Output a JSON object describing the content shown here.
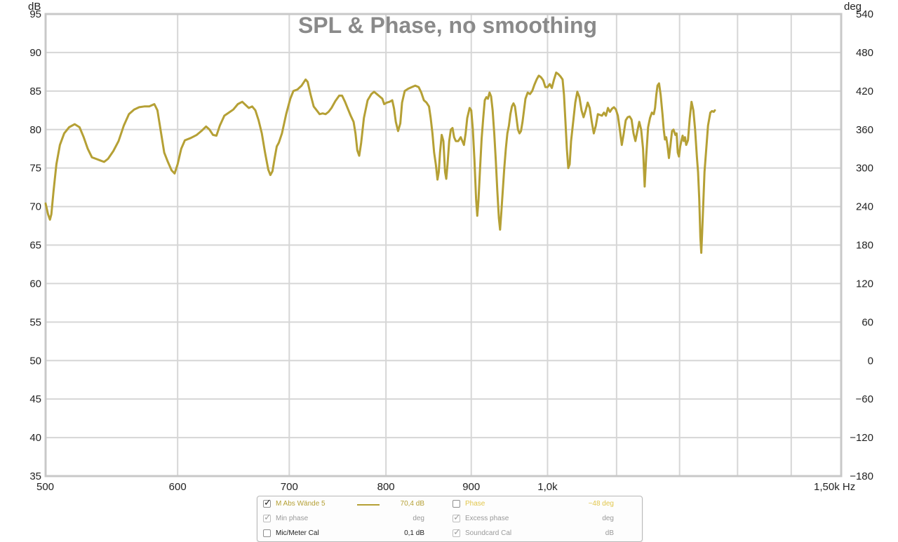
{
  "chart_data": {
    "type": "line",
    "title": "SPL & Phase, no smoothing",
    "x_scale": "log",
    "xlim": [
      500,
      1500
    ],
    "x_ticks": [
      {
        "value": 500,
        "label": "500"
      },
      {
        "value": 600,
        "label": "600"
      },
      {
        "value": 700,
        "label": "700"
      },
      {
        "value": 800,
        "label": "800"
      },
      {
        "value": 900,
        "label": "900"
      },
      {
        "value": 1000,
        "label": "1,0k"
      },
      {
        "value": 1500,
        "label": "1,50k Hz"
      }
    ],
    "x_minor_gridlines": [
      1100,
      1200,
      1300,
      1400
    ],
    "ylabel": "dB",
    "ylim": [
      35,
      95
    ],
    "y_ticks": [
      35,
      40,
      45,
      50,
      55,
      60,
      65,
      70,
      75,
      80,
      85,
      90,
      95
    ],
    "y2label": "deg",
    "y2lim": [
      -180,
      540
    ],
    "y2_ticks": [
      "540",
      "480",
      "420",
      "360",
      "300",
      "240",
      "180",
      "120",
      "60",
      "0",
      "−60",
      "−120",
      "−180"
    ],
    "grid": true,
    "series": [
      {
        "name": "M Abs Wände 5",
        "color": "#b5a035",
        "points": [
          [
            500,
            70.4
          ],
          [
            501.7,
            69.0
          ],
          [
            503,
            68.3
          ],
          [
            504,
            69.0
          ],
          [
            505.5,
            72.0
          ],
          [
            507.5,
            75.5
          ],
          [
            510,
            78.0
          ],
          [
            513,
            79.5
          ],
          [
            516.5,
            80.3
          ],
          [
            520.5,
            80.7
          ],
          [
            524,
            80.3
          ],
          [
            527,
            79.0
          ],
          [
            530,
            77.5
          ],
          [
            533,
            76.4
          ],
          [
            536,
            76.2
          ],
          [
            539,
            76.0
          ],
          [
            542,
            75.8
          ],
          [
            545,
            76.2
          ],
          [
            549,
            77.2
          ],
          [
            553,
            78.5
          ],
          [
            557,
            80.5
          ],
          [
            561,
            82.0
          ],
          [
            565,
            82.6
          ],
          [
            569,
            82.9
          ],
          [
            573,
            83.0
          ],
          [
            577,
            83.0
          ],
          [
            581,
            83.3
          ],
          [
            583.5,
            82.5
          ],
          [
            586,
            80.0
          ],
          [
            589,
            77.0
          ],
          [
            592,
            75.8
          ],
          [
            595,
            74.7
          ],
          [
            597.5,
            74.3
          ],
          [
            600,
            75.5
          ],
          [
            603,
            77.5
          ],
          [
            606,
            78.6
          ],
          [
            611,
            78.9
          ],
          [
            616,
            79.3
          ],
          [
            620,
            79.8
          ],
          [
            624,
            80.4
          ],
          [
            627,
            80.0
          ],
          [
            630,
            79.3
          ],
          [
            633,
            79.2
          ],
          [
            636,
            80.5
          ],
          [
            640,
            81.8
          ],
          [
            644,
            82.2
          ],
          [
            648,
            82.6
          ],
          [
            652,
            83.3
          ],
          [
            656,
            83.6
          ],
          [
            659,
            83.2
          ],
          [
            662,
            82.8
          ],
          [
            665,
            83.0
          ],
          [
            668,
            82.5
          ],
          [
            671,
            81.2
          ],
          [
            674,
            79.5
          ],
          [
            677,
            77.0
          ],
          [
            680,
            74.8
          ],
          [
            682,
            74.1
          ],
          [
            684,
            74.6
          ],
          [
            686,
            76.3
          ],
          [
            688,
            77.8
          ],
          [
            690,
            78.3
          ],
          [
            693,
            79.5
          ],
          [
            697,
            82.0
          ],
          [
            701,
            84.0
          ],
          [
            704,
            85.0
          ],
          [
            708,
            85.2
          ],
          [
            712,
            85.7
          ],
          [
            716,
            86.5
          ],
          [
            718,
            86.2
          ],
          [
            721,
            84.5
          ],
          [
            724,
            83.0
          ],
          [
            727,
            82.5
          ],
          [
            730,
            82.0
          ],
          [
            733,
            82.1
          ],
          [
            736,
            82.0
          ],
          [
            739,
            82.3
          ],
          [
            742,
            82.8
          ],
          [
            746,
            83.7
          ],
          [
            750,
            84.4
          ],
          [
            753,
            84.4
          ],
          [
            756,
            83.6
          ],
          [
            759,
            82.7
          ],
          [
            762,
            81.8
          ],
          [
            765,
            81.0
          ],
          [
            767,
            79.5
          ],
          [
            769,
            77.3
          ],
          [
            771,
            76.6
          ],
          [
            773,
            78.2
          ],
          [
            776,
            81.5
          ],
          [
            780,
            83.8
          ],
          [
            784,
            84.6
          ],
          [
            787,
            84.9
          ],
          [
            790,
            84.6
          ],
          [
            793,
            84.3
          ],
          [
            796,
            84.0
          ],
          [
            798,
            83.3
          ],
          [
            801,
            83.5
          ],
          [
            804,
            83.6
          ],
          [
            807,
            83.8
          ],
          [
            809,
            82.7
          ],
          [
            811,
            81.0
          ],
          [
            813.5,
            79.8
          ],
          [
            816,
            80.8
          ],
          [
            818,
            83.5
          ],
          [
            821,
            85.0
          ],
          [
            825,
            85.3
          ],
          [
            829,
            85.5
          ],
          [
            833,
            85.7
          ],
          [
            837,
            85.5
          ],
          [
            840,
            84.8
          ],
          [
            843,
            83.8
          ],
          [
            846,
            83.5
          ],
          [
            849,
            83.0
          ],
          [
            851,
            81.5
          ],
          [
            853,
            79.5
          ],
          [
            855,
            77.0
          ],
          [
            857,
            75.5
          ],
          [
            859,
            73.5
          ],
          [
            860.5,
            74.5
          ],
          [
            862,
            77.0
          ],
          [
            864,
            79.3
          ],
          [
            866,
            78.5
          ],
          [
            868,
            74.5
          ],
          [
            869.5,
            73.6
          ],
          [
            871,
            75.5
          ],
          [
            873,
            78.5
          ],
          [
            875,
            80.0
          ],
          [
            877,
            80.2
          ],
          [
            879,
            79.0
          ],
          [
            881,
            78.5
          ],
          [
            884,
            78.5
          ],
          [
            887,
            79.0
          ],
          [
            889,
            78.5
          ],
          [
            891,
            78.0
          ],
          [
            893,
            79.5
          ],
          [
            895,
            81.5
          ],
          [
            898,
            82.8
          ],
          [
            900,
            82.5
          ],
          [
            902,
            80.0
          ],
          [
            904,
            76.0
          ],
          [
            906,
            71.0
          ],
          [
            907.5,
            68.8
          ],
          [
            909,
            70.8
          ],
          [
            911,
            75.0
          ],
          [
            913,
            78.8
          ],
          [
            915,
            81.5
          ],
          [
            917,
            83.8
          ],
          [
            919,
            84.2
          ],
          [
            921,
            84.0
          ],
          [
            923,
            84.8
          ],
          [
            925,
            84.3
          ],
          [
            927,
            82.5
          ],
          [
            929,
            79.5
          ],
          [
            931,
            76.0
          ],
          [
            933,
            72.0
          ],
          [
            935,
            68.5
          ],
          [
            936.5,
            67.0
          ],
          [
            938,
            69.0
          ],
          [
            940,
            72.0
          ],
          [
            942,
            75.0
          ],
          [
            944,
            77.5
          ],
          [
            946,
            79.5
          ],
          [
            948,
            80.5
          ],
          [
            950,
            82.0
          ],
          [
            952,
            83.0
          ],
          [
            954,
            83.4
          ],
          [
            956,
            83.0
          ],
          [
            958,
            81.5
          ],
          [
            960,
            80.0
          ],
          [
            962,
            79.5
          ],
          [
            964,
            79.8
          ],
          [
            966,
            81.0
          ],
          [
            968,
            82.5
          ],
          [
            970,
            84.0
          ],
          [
            973,
            84.8
          ],
          [
            976,
            84.6
          ],
          [
            979,
            85.0
          ],
          [
            982,
            85.8
          ],
          [
            985,
            86.5
          ],
          [
            988,
            87.0
          ],
          [
            991,
            86.8
          ],
          [
            994,
            86.4
          ],
          [
            997,
            85.5
          ],
          [
            1000,
            85.5
          ],
          [
            1003,
            85.9
          ],
          [
            1006,
            85.4
          ],
          [
            1009,
            86.5
          ],
          [
            1012,
            87.4
          ],
          [
            1015,
            87.2
          ],
          [
            1018,
            86.9
          ],
          [
            1021,
            86.5
          ],
          [
            1023,
            84.5
          ],
          [
            1025,
            81.0
          ],
          [
            1027,
            77.5
          ],
          [
            1029,
            75.0
          ],
          [
            1031,
            75.5
          ],
          [
            1033,
            78.5
          ],
          [
            1036,
            81.0
          ],
          [
            1039,
            83.5
          ],
          [
            1042,
            84.9
          ],
          [
            1045,
            84.2
          ],
          [
            1048,
            82.5
          ],
          [
            1051,
            81.6
          ],
          [
            1054,
            82.5
          ],
          [
            1057,
            83.5
          ],
          [
            1060,
            82.8
          ],
          [
            1063,
            81.0
          ],
          [
            1066,
            79.5
          ],
          [
            1069,
            80.5
          ],
          [
            1072,
            82.0
          ],
          [
            1075,
            81.9
          ],
          [
            1078,
            81.8
          ],
          [
            1081,
            82.2
          ],
          [
            1084,
            81.8
          ],
          [
            1087,
            82.8
          ],
          [
            1090,
            82.3
          ],
          [
            1093,
            82.7
          ],
          [
            1096,
            82.9
          ],
          [
            1099,
            82.6
          ],
          [
            1102,
            81.8
          ],
          [
            1105,
            80.0
          ],
          [
            1108,
            78.0
          ],
          [
            1111,
            79.5
          ],
          [
            1114,
            81.2
          ],
          [
            1117,
            81.6
          ],
          [
            1120,
            81.7
          ],
          [
            1123,
            81.3
          ],
          [
            1126,
            79.5
          ],
          [
            1129,
            78.5
          ],
          [
            1132,
            79.8
          ],
          [
            1135,
            81.0
          ],
          [
            1138,
            80.0
          ],
          [
            1141,
            77.5
          ],
          [
            1143.5,
            72.6
          ],
          [
            1146,
            76.5
          ],
          [
            1149,
            80.3
          ],
          [
            1152,
            81.5
          ],
          [
            1155,
            82.2
          ],
          [
            1158,
            82.0
          ],
          [
            1160,
            82.8
          ],
          [
            1162,
            84.5
          ],
          [
            1164,
            85.7
          ],
          [
            1166.5,
            86.0
          ],
          [
            1169,
            84.5
          ],
          [
            1172,
            82.0
          ],
          [
            1174,
            80.0
          ],
          [
            1176,
            78.7
          ],
          [
            1178,
            79.0
          ],
          [
            1180,
            78.0
          ],
          [
            1182.5,
            76.3
          ],
          [
            1185,
            78.0
          ],
          [
            1187.5,
            79.8
          ],
          [
            1190,
            80.0
          ],
          [
            1193,
            79.3
          ],
          [
            1195,
            79.5
          ],
          [
            1197,
            77.0
          ],
          [
            1199,
            76.5
          ],
          [
            1201,
            77.8
          ],
          [
            1203,
            78.5
          ],
          [
            1205,
            79.2
          ],
          [
            1207,
            78.5
          ],
          [
            1209,
            79.0
          ],
          [
            1211,
            78.0
          ],
          [
            1214,
            78.6
          ],
          [
            1217,
            81.5
          ],
          [
            1220,
            83.6
          ],
          [
            1223,
            82.5
          ],
          [
            1226,
            80.0
          ],
          [
            1229,
            76.5
          ],
          [
            1231,
            74.5
          ],
          [
            1233,
            71.0
          ],
          [
            1235,
            66.0
          ],
          [
            1236.5,
            64.0
          ],
          [
            1238,
            66.5
          ],
          [
            1240,
            70.5
          ],
          [
            1242,
            74.5
          ],
          [
            1245,
            77.5
          ],
          [
            1248,
            80.5
          ],
          [
            1252,
            82.2
          ],
          [
            1255,
            82.4
          ],
          [
            1258,
            82.3
          ],
          [
            1260,
            82.5
          ]
        ]
      }
    ]
  },
  "legend": {
    "rows": [
      {
        "left": {
          "checked": true,
          "dim": false,
          "label": "M Abs Wände 5",
          "label_color": "gold",
          "swatch": true,
          "value": "70,4 dB",
          "value_color": "gold"
        },
        "right": {
          "checked": false,
          "dim": false,
          "label": "Phase",
          "label_color": "yellow",
          "value": "−48 deg",
          "value_color": "yellow"
        }
      },
      {
        "left": {
          "checked": true,
          "dim": true,
          "label": "Min phase",
          "label_color": "grey",
          "swatch": false,
          "value": "deg",
          "value_color": "grey"
        },
        "right": {
          "checked": true,
          "dim": true,
          "label": "Excess phase",
          "label_color": "grey",
          "value": "deg",
          "value_color": "grey"
        }
      },
      {
        "left": {
          "checked": false,
          "dim": false,
          "label": "Mic/Meter Cal",
          "label_color": "dark",
          "swatch": false,
          "value": "0,1 dB",
          "value_color": "dark"
        },
        "right": {
          "checked": true,
          "dim": true,
          "label": "Soundcard Cal",
          "label_color": "grey",
          "value": "dB",
          "value_color": "grey"
        }
      }
    ]
  }
}
